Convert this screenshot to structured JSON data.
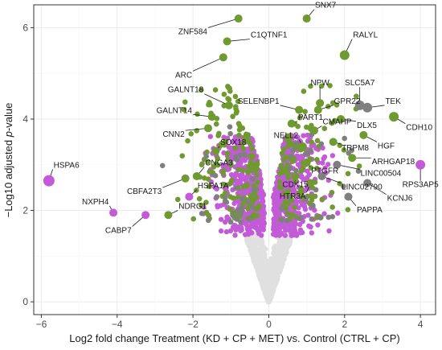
{
  "chart_data": {
    "type": "scatter",
    "title": "",
    "xlabel": "Log2 fold change Treatment (KD + CP + MET) vs. Control (CTRL + CP)",
    "ylabel_prefix": "−Log10 adjusted ",
    "ylabel_italic": "p",
    "ylabel_suffix": "-value",
    "xlim": [
      -6.2,
      4.4
    ],
    "ylim": [
      -0.28,
      6.5
    ],
    "x_ticks": [
      {
        "value": -6,
        "label": "−6"
      },
      {
        "value": -4,
        "label": "−4"
      },
      {
        "value": -2,
        "label": "−2"
      },
      {
        "value": 0,
        "label": "0"
      },
      {
        "value": 2,
        "label": "2"
      },
      {
        "value": 4,
        "label": "4"
      }
    ],
    "y_ticks": [
      {
        "value": 0,
        "label": "0"
      },
      {
        "value": 2,
        "label": "2"
      },
      {
        "value": 4,
        "label": "4"
      },
      {
        "value": 6,
        "label": "6"
      }
    ],
    "grid": true,
    "colors": {
      "not_significant": "#e0e0e0",
      "green": "#6e9a2f",
      "magenta": "#c35bd8",
      "grey": "#7f7f7f"
    },
    "labeled_points": [
      {
        "gene": "SNX7",
        "x": 1.0,
        "y": 6.2,
        "color": "green",
        "size": 5,
        "lx": 1.2,
        "ly": 6.4
      },
      {
        "gene": "ZNF584",
        "x": -0.8,
        "y": 6.2,
        "color": "green",
        "size": 5,
        "lx": -1.6,
        "ly": 6.0
      },
      {
        "gene": "C1QTNF1",
        "x": -1.1,
        "y": 5.7,
        "color": "green",
        "size": 5,
        "lx": -0.5,
        "ly": 5.75
      },
      {
        "gene": "RALYL",
        "x": 2.0,
        "y": 5.4,
        "color": "green",
        "size": 6,
        "lx": 2.2,
        "ly": 5.75
      },
      {
        "gene": "ARC",
        "x": -1.2,
        "y": 5.35,
        "color": "green",
        "size": 5,
        "lx": -2.0,
        "ly": 5.05
      },
      {
        "gene": "NPW",
        "x": 1.35,
        "y": 4.35,
        "color": "green",
        "size": 5,
        "lx": 1.35,
        "ly": 4.7
      },
      {
        "gene": "SLC5A7",
        "x": 2.4,
        "y": 4.3,
        "color": "grey",
        "size": 6,
        "lx": 2.4,
        "ly": 4.7
      },
      {
        "gene": "GALNT18",
        "x": -1.05,
        "y": 4.3,
        "color": "green",
        "size": 5,
        "lx": -1.7,
        "ly": 4.55
      },
      {
        "gene": "SELENBP1",
        "x": 0.8,
        "y": 4.2,
        "color": "green",
        "size": 5,
        "lx": 0.3,
        "ly": 4.3
      },
      {
        "gene": "GPR22",
        "x": 1.3,
        "y": 4.2,
        "color": "green",
        "size": 5,
        "lx": 1.7,
        "ly": 4.3
      },
      {
        "gene": "TEK",
        "x": 2.6,
        "y": 4.25,
        "color": "grey",
        "size": 6,
        "lx": 3.05,
        "ly": 4.3
      },
      {
        "gene": "GALNT14",
        "x": -1.5,
        "y": 4.05,
        "color": "green",
        "size": 5,
        "lx": -2.0,
        "ly": 4.1
      },
      {
        "gene": "CDH10",
        "x": 3.3,
        "y": 4.05,
        "color": "green",
        "size": 6,
        "lx": 3.6,
        "ly": 3.9
      },
      {
        "gene": "DLX5",
        "x": 1.9,
        "y": 4.0,
        "color": "green",
        "size": 5,
        "lx": 2.3,
        "ly": 3.95
      },
      {
        "gene": "PART1",
        "x": 0.6,
        "y": 3.9,
        "color": "green",
        "size": 5,
        "lx": 0.75,
        "ly": 3.95
      },
      {
        "gene": "CMAHP",
        "x": 1.2,
        "y": 3.75,
        "color": "green",
        "size": 5,
        "lx": 1.4,
        "ly": 3.85
      },
      {
        "gene": "CNN2",
        "x": -1.6,
        "y": 3.8,
        "color": "green",
        "size": 5,
        "lx": -2.2,
        "ly": 3.75
      },
      {
        "gene": "HGF",
        "x": 2.5,
        "y": 3.65,
        "color": "green",
        "size": 5,
        "lx": 2.85,
        "ly": 3.5
      },
      {
        "gene": "NELL2",
        "x": 0.9,
        "y": 3.4,
        "color": "green",
        "size": 5,
        "lx": 0.8,
        "ly": 3.55
      },
      {
        "gene": "TRPM8",
        "x": 1.7,
        "y": 3.5,
        "color": "green",
        "size": 5,
        "lx": 1.9,
        "ly": 3.45
      },
      {
        "gene": "SOX18",
        "x": -1.4,
        "y": 3.3,
        "color": "green",
        "size": 5,
        "lx": -1.3,
        "ly": 3.4
      },
      {
        "gene": "ARHGAP18",
        "x": 2.2,
        "y": 3.15,
        "color": "green",
        "size": 5,
        "lx": 2.7,
        "ly": 3.15
      },
      {
        "gene": "PTGFR",
        "x": 1.0,
        "y": 3.05,
        "color": "green",
        "size": 5,
        "lx": 1.1,
        "ly": 2.95
      },
      {
        "gene": "LINC00504",
        "x": 1.8,
        "y": 3.0,
        "color": "grey",
        "size": 5,
        "lx": 2.4,
        "ly": 2.9
      },
      {
        "gene": "RPS3AP5",
        "x": 4.0,
        "y": 3.0,
        "color": "magenta",
        "size": 6,
        "lx": 4.0,
        "ly": 2.65
      },
      {
        "gene": "CNGA3",
        "x": -1.9,
        "y": 2.75,
        "color": "green",
        "size": 5,
        "lx": -1.7,
        "ly": 2.95
      },
      {
        "gene": "HSPA6",
        "x": -5.8,
        "y": 2.65,
        "color": "magenta",
        "size": 7,
        "lx": -5.7,
        "ly": 2.9
      },
      {
        "gene": "CDK15",
        "x": 0.7,
        "y": 2.75,
        "color": "green",
        "size": 5,
        "lx": 0.7,
        "ly": 2.65
      },
      {
        "gene": "LINC02790",
        "x": 1.4,
        "y": 2.75,
        "color": "grey",
        "size": 5,
        "lx": 1.9,
        "ly": 2.6
      },
      {
        "gene": "CBFA2T3",
        "x": -2.2,
        "y": 2.7,
        "color": "green",
        "size": 5,
        "lx": -2.8,
        "ly": 2.5
      },
      {
        "gene": "HTR3A",
        "x": 1.1,
        "y": 2.6,
        "color": "green",
        "size": 5,
        "lx": 1.0,
        "ly": 2.4
      },
      {
        "gene": "KCNJ6",
        "x": 2.6,
        "y": 2.6,
        "color": "grey",
        "size": 5,
        "lx": 3.1,
        "ly": 2.35
      },
      {
        "gene": "HSPA1A",
        "x": -2.1,
        "y": 2.3,
        "color": "magenta",
        "size": 5,
        "lx": -1.9,
        "ly": 2.45
      },
      {
        "gene": "PAPPA",
        "x": 2.1,
        "y": 2.3,
        "color": "grey",
        "size": 5,
        "lx": 2.3,
        "ly": 2.1
      },
      {
        "gene": "NXPH4",
        "x": -4.1,
        "y": 1.95,
        "color": "magenta",
        "size": 5,
        "lx": -4.2,
        "ly": 2.1
      },
      {
        "gene": "NDRG1",
        "x": -2.65,
        "y": 1.9,
        "color": "green",
        "size": 5,
        "lx": -2.4,
        "ly": 2.0
      },
      {
        "gene": "CABP7",
        "x": -3.25,
        "y": 1.9,
        "color": "magenta",
        "size": 5,
        "lx": -3.6,
        "ly": 1.65
      }
    ]
  }
}
